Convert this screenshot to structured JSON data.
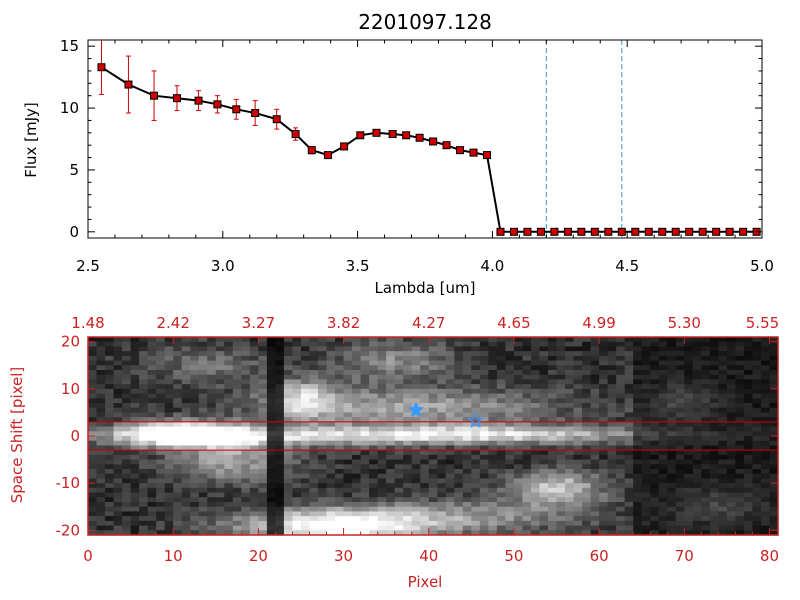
{
  "title": "2201097.128",
  "chart_data": [
    {
      "type": "line",
      "xlabel": "Lambda [um]",
      "ylabel": "Flux [mJy]",
      "xlim": [
        2.5,
        5.0
      ],
      "ylim": [
        -0.5,
        15.5
      ],
      "xticks": [
        2.5,
        3.0,
        3.5,
        4.0,
        4.5,
        5.0
      ],
      "xtick_labels": [
        "2.5",
        "3.0",
        "3.5",
        "4.0",
        "4.5",
        "5.0"
      ],
      "yticks": [
        0,
        5,
        10,
        15
      ],
      "ytick_labels": [
        "0",
        "5",
        "10",
        "15"
      ],
      "marker_color": "#cc0000",
      "line_color": "#000000",
      "errorbar_color": "#cc0000",
      "vlines": [
        4.2,
        4.48
      ],
      "vline_color": "#3399cc",
      "series": [
        {
          "x": [
            2.55,
            2.65,
            2.745,
            2.83,
            2.91,
            2.98,
            3.05,
            3.12,
            3.2,
            3.27,
            3.33,
            3.39,
            3.45,
            3.51,
            3.57,
            3.63,
            3.68,
            3.73,
            3.78,
            3.83,
            3.88,
            3.93,
            3.98,
            4.03,
            4.08,
            4.13,
            4.18,
            4.23,
            4.28,
            4.33,
            4.38,
            4.43,
            4.48,
            4.53,
            4.58,
            4.63,
            4.68,
            4.73,
            4.78,
            4.83,
            4.88,
            4.93,
            4.98
          ],
          "y": [
            13.3,
            11.9,
            11.0,
            10.8,
            10.6,
            10.3,
            9.9,
            9.6,
            9.1,
            7.9,
            6.6,
            6.2,
            6.9,
            7.8,
            8.0,
            7.9,
            7.8,
            7.6,
            7.3,
            7.0,
            6.6,
            6.4,
            6.2,
            0.0,
            0.0,
            0.0,
            0.0,
            0.0,
            0.0,
            0.0,
            0.0,
            0.0,
            0.0,
            0.0,
            0.0,
            0.0,
            0.0,
            0.0,
            0.0,
            0.0,
            0.0,
            0.0,
            0.0
          ],
          "yerr": [
            2.2,
            2.3,
            2.0,
            1.0,
            0.8,
            0.7,
            0.8,
            1.0,
            0.8,
            0.5,
            0.3,
            0.2,
            0.2,
            0.2,
            0.2,
            0.2,
            0.2,
            0.2,
            0.2,
            0.2,
            0.2,
            0.2,
            0.2,
            0.0,
            0.0,
            0.0,
            0.0,
            0.0,
            0.0,
            0.0,
            0.0,
            0.0,
            0.0,
            0.0,
            0.0,
            0.0,
            0.0,
            0.0,
            0.0,
            0.0,
            0.0,
            0.0,
            0.0
          ]
        }
      ]
    },
    {
      "type": "heatmap",
      "xlabel": "Pixel",
      "ylabel": "Space Shift [pixel]",
      "xlim": [
        0,
        81
      ],
      "ylim": [
        -21,
        21
      ],
      "xticks": [
        0,
        10,
        20,
        30,
        40,
        50,
        60,
        70,
        80
      ],
      "xtick_labels": [
        "0",
        "10",
        "20",
        "30",
        "40",
        "50",
        "60",
        "70",
        "80"
      ],
      "yticks": [
        -20,
        -10,
        0,
        10,
        20
      ],
      "ytick_labels": [
        "-20",
        "-10",
        "0",
        "10",
        "20"
      ],
      "top_tick_labels": [
        "1.48",
        "2.42",
        "3.27",
        "3.82",
        "4.27",
        "4.65",
        "4.99",
        "5.30",
        "5.55"
      ],
      "hlines": [
        3,
        -3
      ],
      "hline_color": "#cc0000",
      "axis_color": "#cc2222",
      "colormap": "grayscale",
      "star_markers": [
        {
          "x": 38.5,
          "y": 5.5,
          "filled": true
        },
        {
          "x": 45.5,
          "y": 3.2,
          "filled": false
        }
      ],
      "star_color": "#3399ff"
    }
  ]
}
